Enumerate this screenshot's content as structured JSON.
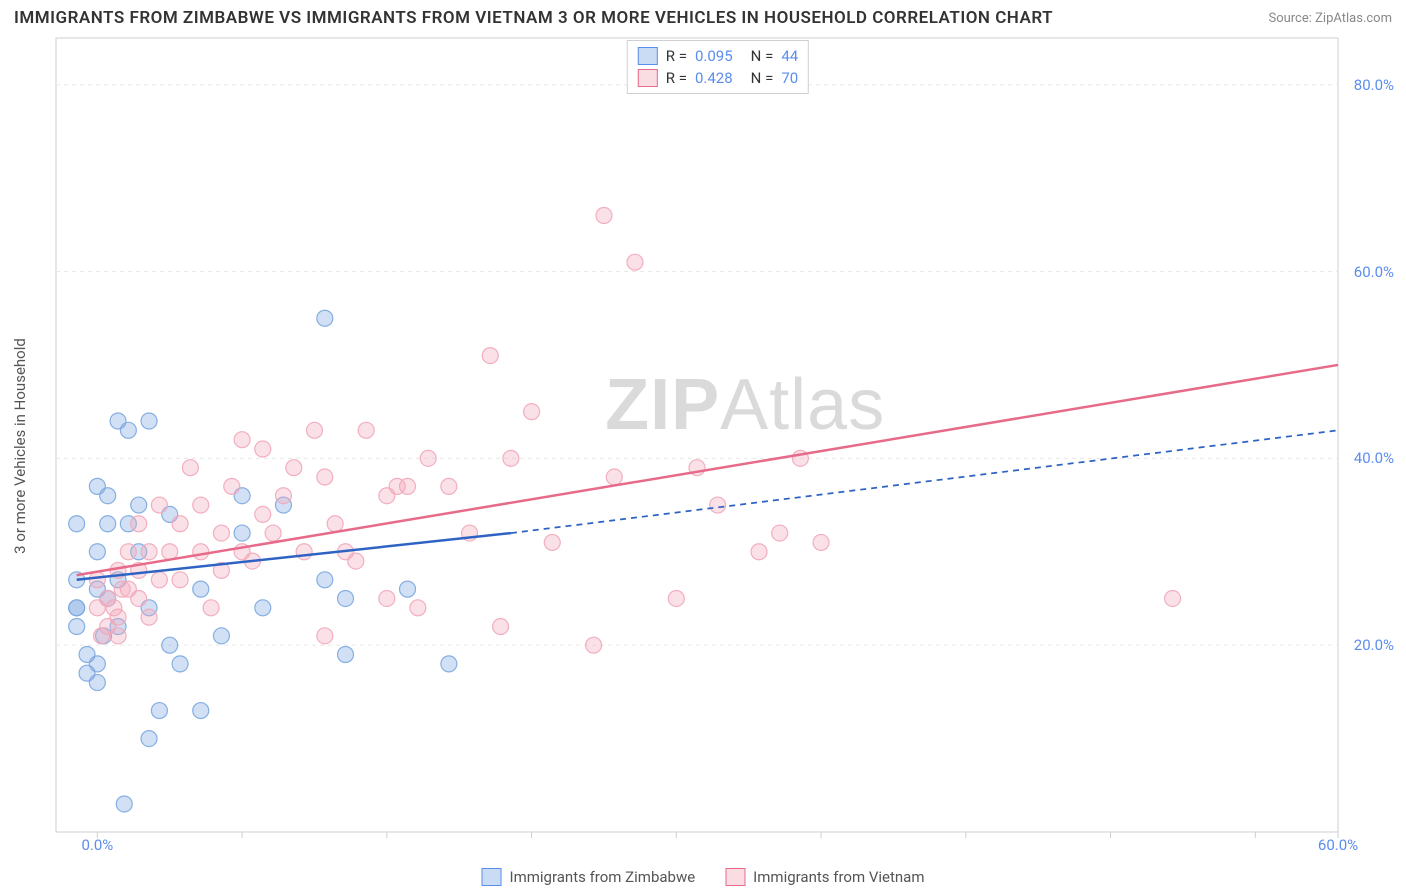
{
  "title": "IMMIGRANTS FROM ZIMBABWE VS IMMIGRANTS FROM VIETNAM 3 OR MORE VEHICLES IN HOUSEHOLD CORRELATION CHART",
  "source_prefix": "Source: ",
  "source_name": "ZipAtlas.com",
  "ylabel": "3 or more Vehicles in Household",
  "watermark_bold": "ZIP",
  "watermark_rest": "Atlas",
  "chart": {
    "type": "scatter",
    "background_color": "#ffffff",
    "grid_color": "#e8e8e8",
    "axis_color": "#cfcfcf",
    "tick_label_color": "#5b8def",
    "tick_fontsize": 15,
    "xlim": [
      -2,
      60
    ],
    "ylim": [
      0,
      85
    ],
    "xticks": [
      0,
      60
    ],
    "xtick_labels": [
      "0.0%",
      "60.0%"
    ],
    "xtick_minor": [
      7,
      14,
      21,
      28,
      35,
      42,
      49,
      56
    ],
    "yticks": [
      20,
      40,
      60,
      80
    ],
    "ytick_labels": [
      "20.0%",
      "40.0%",
      "60.0%",
      "80.0%"
    ],
    "marker_radius": 8,
    "marker_fill_opacity": 0.35,
    "marker_stroke_opacity": 0.9,
    "line_width": 2.5,
    "series": [
      {
        "name": "Immigrants from Zimbabwe",
        "color": "#7ba7e0",
        "line_color": "#2e63c4",
        "R": "0.095",
        "N": "44",
        "points": [
          [
            -1,
            27
          ],
          [
            -1,
            24
          ],
          [
            -1,
            33
          ],
          [
            -1,
            22
          ],
          [
            -0.5,
            19
          ],
          [
            -0.5,
            17
          ],
          [
            0,
            37
          ],
          [
            0,
            30
          ],
          [
            0,
            26
          ],
          [
            0,
            18
          ],
          [
            0,
            16
          ],
          [
            0.5,
            36
          ],
          [
            0.5,
            33
          ],
          [
            0.5,
            25
          ],
          [
            1,
            27
          ],
          [
            1,
            22
          ],
          [
            1,
            44
          ],
          [
            1.5,
            43
          ],
          [
            1.5,
            33
          ],
          [
            2,
            30
          ],
          [
            2,
            35
          ],
          [
            2.5,
            44
          ],
          [
            2.5,
            24
          ],
          [
            2.5,
            10
          ],
          [
            3,
            13
          ],
          [
            3.5,
            34
          ],
          [
            3.5,
            20
          ],
          [
            4,
            18
          ],
          [
            5,
            26
          ],
          [
            5,
            13
          ],
          [
            6,
            21
          ],
          [
            7,
            32
          ],
          [
            7,
            36
          ],
          [
            8,
            24
          ],
          [
            9,
            35
          ],
          [
            11,
            55
          ],
          [
            11,
            27
          ],
          [
            12,
            19
          ],
          [
            12,
            25
          ],
          [
            15,
            26
          ],
          [
            17,
            18
          ],
          [
            -1,
            24
          ],
          [
            0.3,
            21
          ],
          [
            1.3,
            3
          ]
        ],
        "trend": {
          "x1": -1,
          "y1": 27,
          "x2": 20,
          "y2": 32,
          "dash_x2": 60,
          "dash_y2": 43
        }
      },
      {
        "name": "Immigrants from Vietnam",
        "color": "#f2a7b9",
        "line_color": "#e86a8a",
        "R": "0.428",
        "N": "70",
        "points": [
          [
            0,
            24
          ],
          [
            0,
            27
          ],
          [
            0.5,
            25
          ],
          [
            0.5,
            22
          ],
          [
            1,
            28
          ],
          [
            1,
            23
          ],
          [
            1,
            21
          ],
          [
            1.5,
            30
          ],
          [
            1.5,
            26
          ],
          [
            2,
            33
          ],
          [
            2,
            28
          ],
          [
            2,
            25
          ],
          [
            2.5,
            30
          ],
          [
            2.5,
            23
          ],
          [
            3,
            35
          ],
          [
            3,
            27
          ],
          [
            3.5,
            30
          ],
          [
            4,
            33
          ],
          [
            4,
            27
          ],
          [
            4.5,
            39
          ],
          [
            5,
            30
          ],
          [
            5,
            35
          ],
          [
            5.5,
            24
          ],
          [
            6,
            32
          ],
          [
            6,
            28
          ],
          [
            6.5,
            37
          ],
          [
            7,
            42
          ],
          [
            7,
            30
          ],
          [
            7.5,
            29
          ],
          [
            8,
            41
          ],
          [
            8,
            34
          ],
          [
            8.5,
            32
          ],
          [
            9,
            36
          ],
          [
            9.5,
            39
          ],
          [
            10,
            30
          ],
          [
            10.5,
            43
          ],
          [
            11,
            38
          ],
          [
            11,
            21
          ],
          [
            11.5,
            33
          ],
          [
            12,
            30
          ],
          [
            12.5,
            29
          ],
          [
            13,
            43
          ],
          [
            14,
            25
          ],
          [
            14,
            36
          ],
          [
            14.5,
            37
          ],
          [
            15,
            37
          ],
          [
            15.5,
            24
          ],
          [
            16,
            40
          ],
          [
            17,
            37
          ],
          [
            18,
            32
          ],
          [
            19,
            51
          ],
          [
            19.5,
            22
          ],
          [
            20,
            40
          ],
          [
            21,
            45
          ],
          [
            22,
            31
          ],
          [
            24,
            20
          ],
          [
            24.5,
            66
          ],
          [
            25,
            38
          ],
          [
            26,
            61
          ],
          [
            28,
            25
          ],
          [
            29,
            39
          ],
          [
            30,
            35
          ],
          [
            32,
            30
          ],
          [
            33,
            32
          ],
          [
            34,
            40
          ],
          [
            35,
            31
          ],
          [
            52,
            25
          ],
          [
            0.2,
            21
          ],
          [
            0.8,
            24
          ],
          [
            1.2,
            26
          ]
        ],
        "trend": {
          "x1": -1,
          "y1": 27.5,
          "x2": 60,
          "y2": 50
        }
      }
    ]
  },
  "legend_top": [
    {
      "swatch": "#7ba7e0",
      "border": "#5b8def",
      "r_label": "R =",
      "r_val": "0.095",
      "n_label": "N =",
      "n_val": "44"
    },
    {
      "swatch": "#f2a7b9",
      "border": "#e86a8a",
      "r_label": "R =",
      "r_val": "0.428",
      "n_label": "N =",
      "n_val": "70"
    }
  ],
  "legend_bottom": [
    {
      "swatch": "#7ba7e0",
      "border": "#5b8def",
      "label": "Immigrants from Zimbabwe"
    },
    {
      "swatch": "#f2a7b9",
      "border": "#e86a8a",
      "label": "Immigrants from Vietnam"
    }
  ]
}
